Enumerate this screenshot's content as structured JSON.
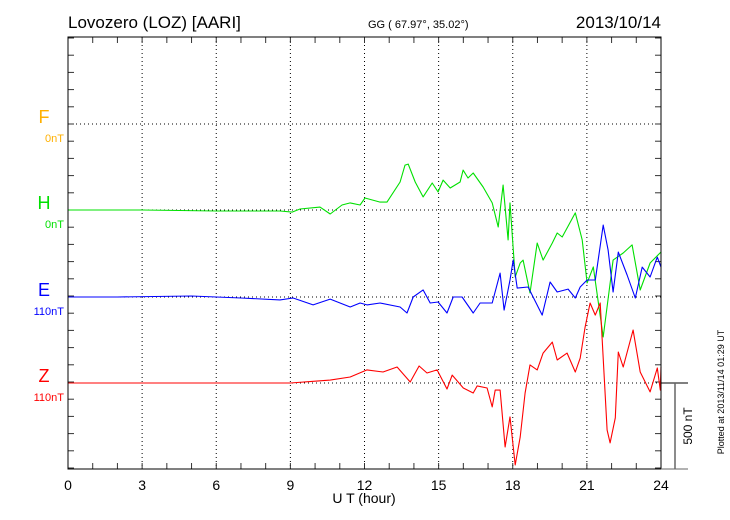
{
  "header": {
    "title": "Lovozero (LOZ)  [AARI]",
    "coords": "GG ( 67.97°,  35.02°)",
    "date": "2013/10/14"
  },
  "footer": {
    "plotted_at": "Plotted at 2013/11/14 01:29 UT",
    "scale_label": "500 nT"
  },
  "chart_data": {
    "type": "line",
    "title": "Lovozero (LOZ)  [AARI]",
    "xlabel": "U T (hour)",
    "ylabel": "",
    "xlim": [
      0,
      24
    ],
    "xticks": [
      "0",
      "3",
      "6",
      "9",
      "12",
      "15",
      "18",
      "21",
      "24"
    ],
    "scale_bar_nT": 500,
    "minor_tick_nT": 100,
    "grid": true,
    "series": [
      {
        "name": "F",
        "offset_label": "0nT",
        "color": "#FFB000",
        "baseline_index": 0,
        "points": []
      },
      {
        "name": "H",
        "offset_label": "0nT",
        "color": "#00E000",
        "baseline_index": 1,
        "points": [
          [
            0,
            0
          ],
          [
            3,
            0
          ],
          [
            6,
            -6
          ],
          [
            8.1,
            -6
          ],
          [
            8.58,
            -6
          ],
          [
            9.07,
            -12
          ],
          [
            9.39,
            6
          ],
          [
            10.2,
            17
          ],
          [
            10.61,
            -23
          ],
          [
            11.09,
            29
          ],
          [
            11.42,
            41
          ],
          [
            11.82,
            29
          ],
          [
            12.02,
            70
          ],
          [
            12.63,
            46
          ],
          [
            12.91,
            46
          ],
          [
            13.44,
            163
          ],
          [
            13.64,
            261
          ],
          [
            13.77,
            267
          ],
          [
            14.05,
            163
          ],
          [
            14.37,
            76
          ],
          [
            14.74,
            157
          ],
          [
            14.98,
            105
          ],
          [
            15.18,
            174
          ],
          [
            15.47,
            128
          ],
          [
            15.87,
            163
          ],
          [
            15.99,
            232
          ],
          [
            16.19,
            186
          ],
          [
            16.4,
            215
          ],
          [
            16.8,
            134
          ],
          [
            17.17,
            41
          ],
          [
            17.41,
            -99
          ],
          [
            17.61,
            145
          ],
          [
            17.81,
            -174
          ],
          [
            17.89,
            41
          ],
          [
            18.1,
            -389
          ],
          [
            18.3,
            -308
          ],
          [
            18.42,
            -291
          ],
          [
            18.7,
            -482
          ],
          [
            18.99,
            -192
          ],
          [
            19.23,
            -291
          ],
          [
            19.6,
            -192
          ],
          [
            19.8,
            -134
          ],
          [
            20.0,
            -157
          ],
          [
            20.53,
            -17
          ],
          [
            20.81,
            -174
          ],
          [
            21.01,
            -424
          ],
          [
            21.26,
            -331
          ],
          [
            21.66,
            -738
          ],
          [
            22.06,
            -291
          ],
          [
            22.47,
            -250
          ],
          [
            22.83,
            -203
          ],
          [
            23.16,
            -465
          ],
          [
            23.56,
            -308
          ],
          [
            24.0,
            -244
          ]
        ]
      },
      {
        "name": "E",
        "offset_label": "110nT",
        "color": "#0000FF",
        "baseline_index": 2,
        "points": [
          [
            0,
            0
          ],
          [
            2,
            0
          ],
          [
            5,
            6
          ],
          [
            7,
            -6
          ],
          [
            8.58,
            -17
          ],
          [
            9.11,
            -6
          ],
          [
            9.92,
            -46
          ],
          [
            10.61,
            -12
          ],
          [
            11.42,
            -58
          ],
          [
            11.82,
            -35
          ],
          [
            12.1,
            -46
          ],
          [
            12.63,
            -35
          ],
          [
            13.44,
            -58
          ],
          [
            13.72,
            -93
          ],
          [
            13.97,
            0
          ],
          [
            14.37,
            41
          ],
          [
            14.66,
            -35
          ],
          [
            14.98,
            -29
          ],
          [
            15.34,
            -93
          ],
          [
            15.59,
            0
          ],
          [
            15.95,
            0
          ],
          [
            16.4,
            -93
          ],
          [
            16.68,
            -35
          ],
          [
            17.17,
            -35
          ],
          [
            17.49,
            139
          ],
          [
            17.65,
            -76
          ],
          [
            17.89,
            99
          ],
          [
            18.02,
            215
          ],
          [
            18.18,
            52
          ],
          [
            18.62,
            58
          ],
          [
            19.19,
            -105
          ],
          [
            19.51,
            87
          ],
          [
            19.8,
            29
          ],
          [
            20.24,
            46
          ],
          [
            20.53,
            -6
          ],
          [
            20.73,
            58
          ],
          [
            21.01,
            99
          ],
          [
            21.34,
            99
          ],
          [
            21.66,
            418
          ],
          [
            21.86,
            273
          ],
          [
            22.06,
            29
          ],
          [
            22.27,
            261
          ],
          [
            22.63,
            128
          ],
          [
            22.96,
            -6
          ],
          [
            23.24,
            174
          ],
          [
            23.56,
            116
          ],
          [
            23.85,
            232
          ],
          [
            24.0,
            174
          ]
        ]
      },
      {
        "name": "Z",
        "offset_label": "110nT",
        "color": "#FF0000",
        "baseline_index": 3,
        "points": [
          [
            0,
            0
          ],
          [
            6,
            0
          ],
          [
            9,
            0
          ],
          [
            10.61,
            17
          ],
          [
            11.42,
            35
          ],
          [
            12.1,
            76
          ],
          [
            12.75,
            64
          ],
          [
            13.32,
            93
          ],
          [
            13.85,
            6
          ],
          [
            14.21,
            99
          ],
          [
            14.53,
            58
          ],
          [
            14.94,
            76
          ],
          [
            15.34,
            -35
          ],
          [
            15.55,
            46
          ],
          [
            16.0,
            -29
          ],
          [
            16.4,
            -58
          ],
          [
            16.56,
            -17
          ],
          [
            16.96,
            -29
          ],
          [
            17.17,
            -139
          ],
          [
            17.29,
            -41
          ],
          [
            17.49,
            -41
          ],
          [
            17.69,
            -372
          ],
          [
            17.89,
            -197
          ],
          [
            18.1,
            -476
          ],
          [
            18.3,
            -314
          ],
          [
            18.5,
            -58
          ],
          [
            18.7,
            105
          ],
          [
            18.99,
            76
          ],
          [
            19.23,
            174
          ],
          [
            19.6,
            238
          ],
          [
            19.8,
            134
          ],
          [
            20.2,
            174
          ],
          [
            20.53,
            64
          ],
          [
            20.73,
            145
          ],
          [
            20.93,
            325
          ],
          [
            21.13,
            465
          ],
          [
            21.34,
            395
          ],
          [
            21.54,
            465
          ],
          [
            21.82,
            -273
          ],
          [
            21.94,
            -348
          ],
          [
            22.15,
            -203
          ],
          [
            22.27,
            180
          ],
          [
            22.47,
            93
          ],
          [
            22.87,
            308
          ],
          [
            23.16,
            64
          ],
          [
            23.56,
            -52
          ],
          [
            23.85,
            87
          ],
          [
            23.97,
            -41
          ],
          [
            24.0,
            93
          ]
        ]
      }
    ]
  }
}
